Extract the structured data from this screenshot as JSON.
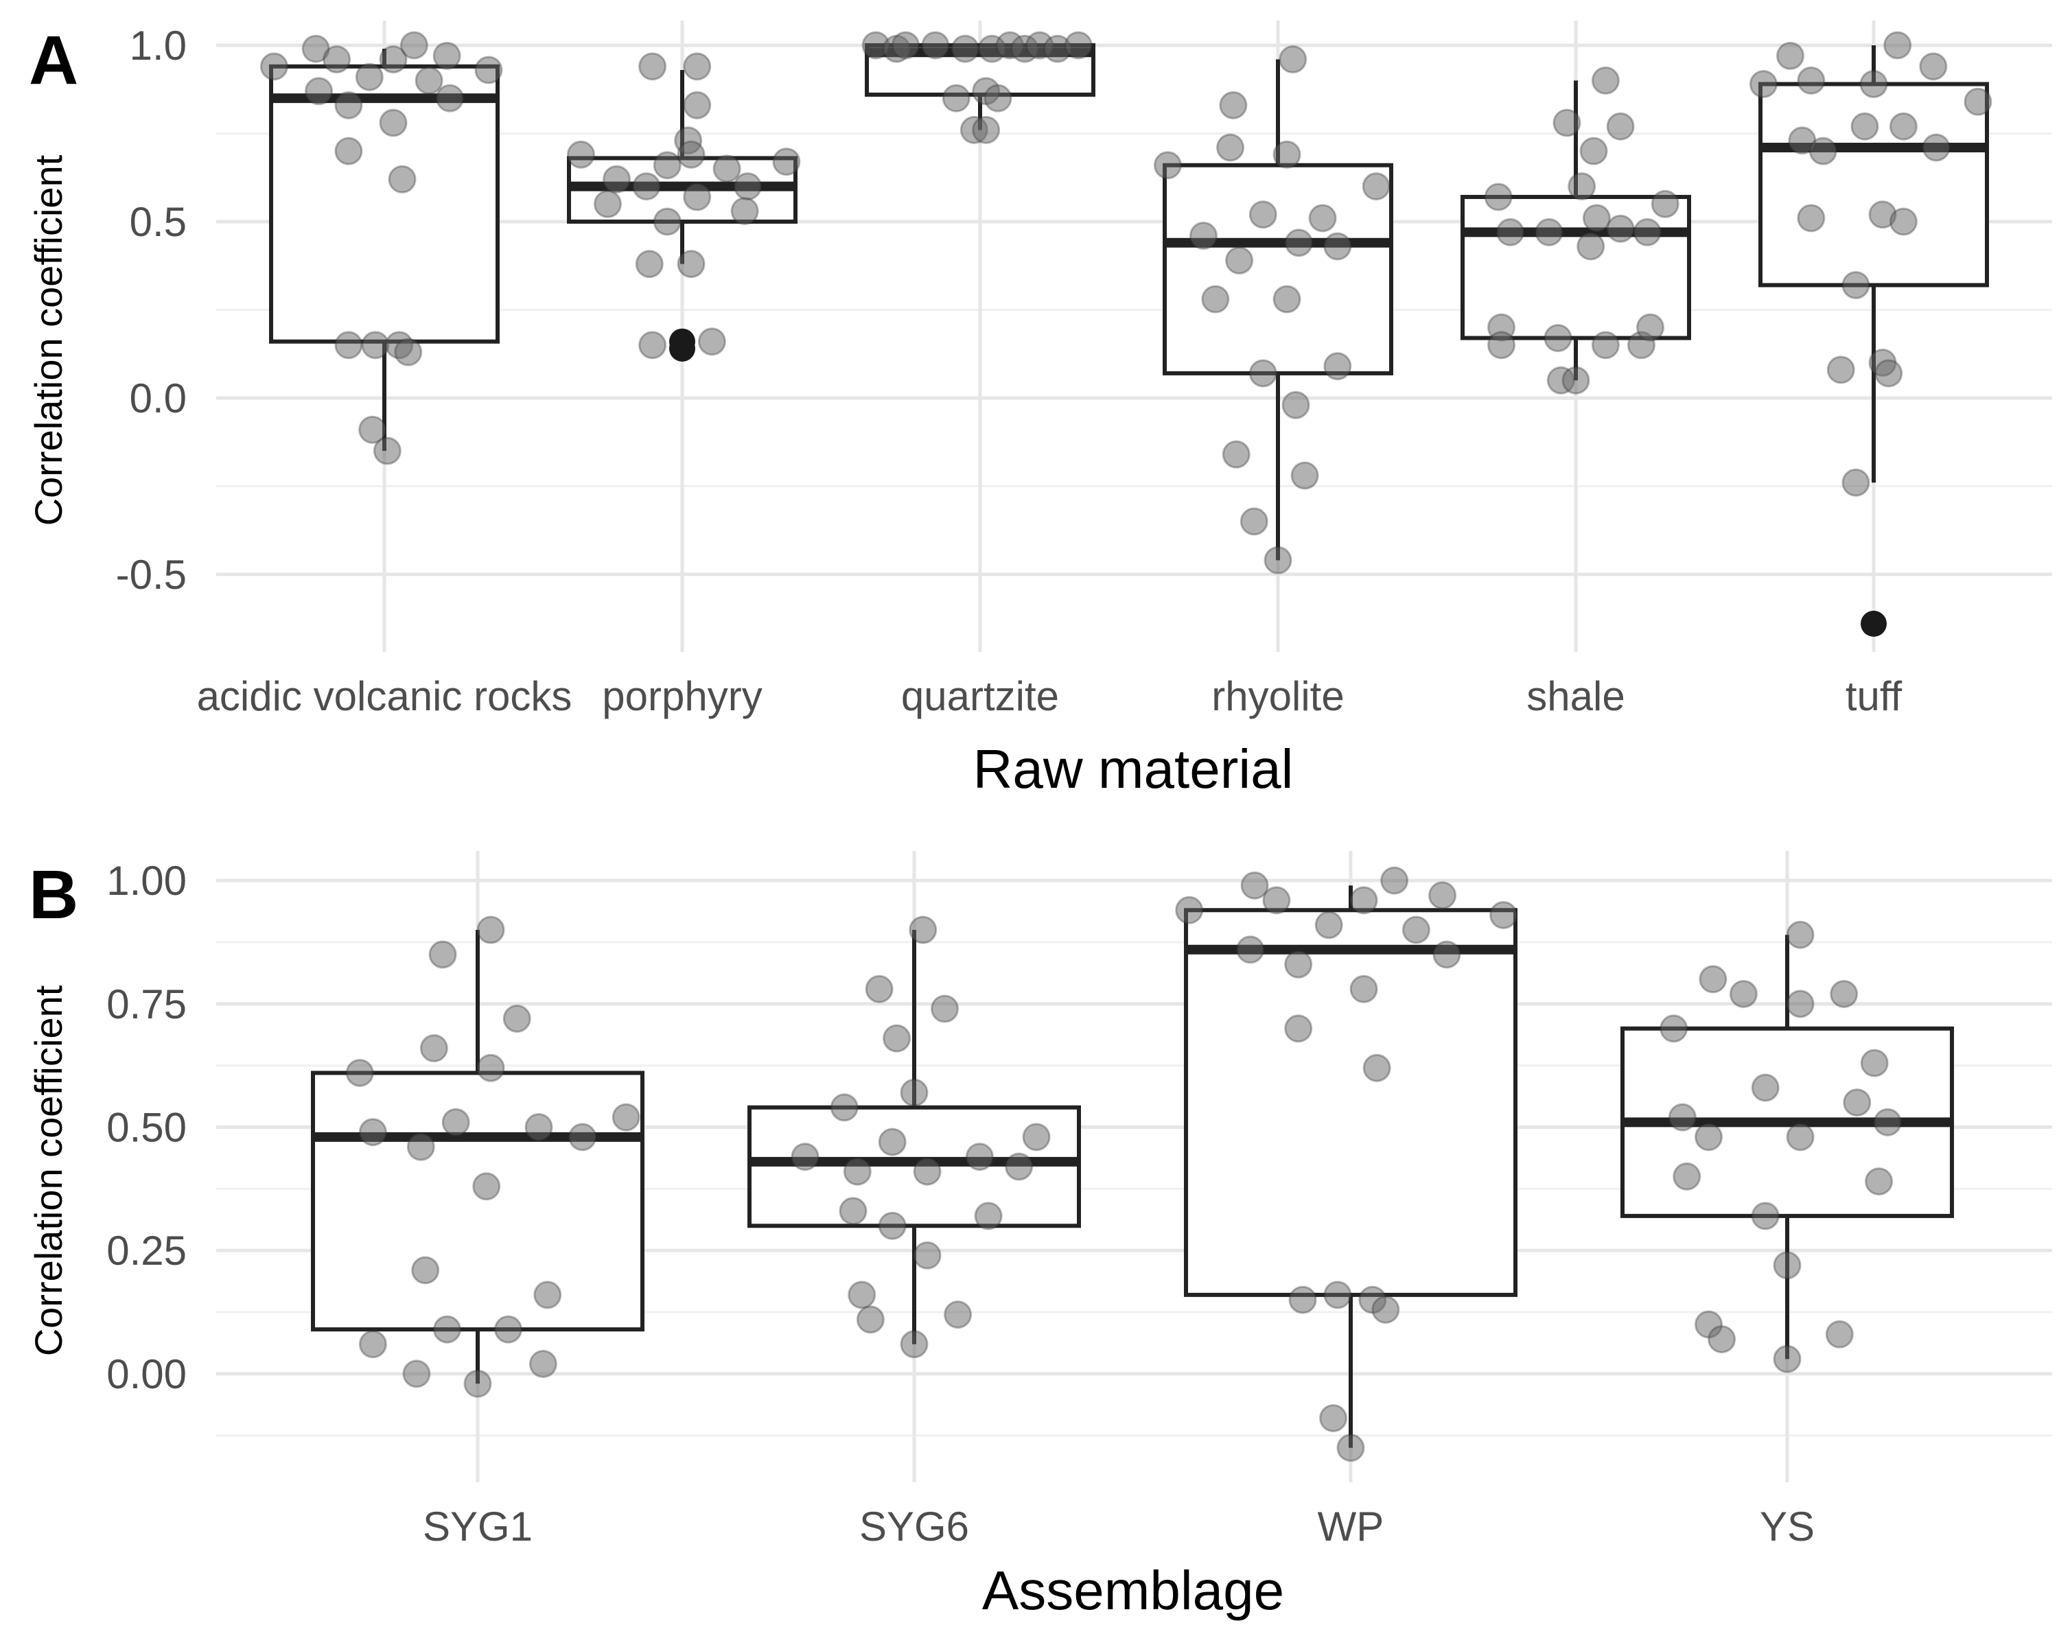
{
  "colors": {
    "grid_major": "#e6e6e6",
    "grid_minor": "#f0f0f0",
    "box_stroke": "#222222",
    "point_fill": "#666666",
    "outlier_fill": "#1a1a1a"
  },
  "chart_data": [
    {
      "panel": "A",
      "type": "box",
      "xlabel": "Raw material",
      "ylabel": "Correlation coefficient",
      "ylim": [
        -0.72,
        1.07
      ],
      "yticks": [
        -0.5,
        0.0,
        0.5,
        1.0
      ],
      "ytick_labels": [
        "-0.5",
        "0.0",
        "0.5",
        "1.0"
      ],
      "categories": [
        "acidic volcanic rocks",
        "porphyry",
        "quartzite",
        "rhyolite",
        "shale",
        "tuff"
      ],
      "boxes": [
        {
          "q1": 0.16,
          "median": 0.85,
          "q3": 0.94,
          "whisker_low": -0.15,
          "whisker_high": 0.99,
          "outliers": []
        },
        {
          "q1": 0.5,
          "median": 0.6,
          "q3": 0.68,
          "whisker_low": 0.38,
          "whisker_high": 0.93,
          "outliers": [
            0.14,
            0.16
          ]
        },
        {
          "q1": 0.86,
          "median": 0.98,
          "q3": 1.0,
          "whisker_low": 0.76,
          "whisker_high": 1.0,
          "outliers": []
        },
        {
          "q1": 0.07,
          "median": 0.44,
          "q3": 0.66,
          "whisker_low": -0.46,
          "whisker_high": 0.96,
          "outliers": []
        },
        {
          "q1": 0.17,
          "median": 0.47,
          "q3": 0.57,
          "whisker_low": 0.05,
          "whisker_high": 0.9,
          "outliers": []
        },
        {
          "q1": 0.32,
          "median": 0.71,
          "q3": 0.89,
          "whisker_low": -0.24,
          "whisker_high": 1.0,
          "outliers": [
            -0.64
          ]
        }
      ],
      "points": [
        [
          [
            -0.37,
            0.94
          ],
          [
            -0.23,
            0.99
          ],
          [
            -0.16,
            0.96
          ],
          [
            -0.22,
            0.87
          ],
          [
            -0.12,
            0.83
          ],
          [
            -0.05,
            0.91
          ],
          [
            0.03,
            0.96
          ],
          [
            0.1,
            1.0
          ],
          [
            0.15,
            0.9
          ],
          [
            0.21,
            0.97
          ],
          [
            0.22,
            0.85
          ],
          [
            0.35,
            0.93
          ],
          [
            -0.12,
            0.7
          ],
          [
            0.03,
            0.78
          ],
          [
            0.06,
            0.62
          ],
          [
            -0.12,
            0.15
          ],
          [
            -0.03,
            0.15
          ],
          [
            0.05,
            0.15
          ],
          [
            0.08,
            0.13
          ],
          [
            -0.04,
            -0.09
          ],
          [
            0.01,
            -0.15
          ]
        ],
        [
          [
            -0.34,
            0.69
          ],
          [
            -0.25,
            0.55
          ],
          [
            -0.22,
            0.62
          ],
          [
            -0.12,
            0.6
          ],
          [
            -0.05,
            0.66
          ],
          [
            0.02,
            0.73
          ],
          [
            0.03,
            0.69
          ],
          [
            0.05,
            0.57
          ],
          [
            0.15,
            0.65
          ],
          [
            0.21,
            0.53
          ],
          [
            0.22,
            0.6
          ],
          [
            0.35,
            0.67
          ],
          [
            -0.1,
            0.94
          ],
          [
            0.05,
            0.94
          ],
          [
            0.05,
            0.83
          ],
          [
            -0.05,
            0.5
          ],
          [
            -0.11,
            0.38
          ],
          [
            0.03,
            0.38
          ],
          [
            -0.1,
            0.15
          ],
          [
            0.1,
            0.16
          ]
        ],
        [
          [
            -0.35,
            1.0
          ],
          [
            -0.28,
            0.99
          ],
          [
            -0.25,
            1.0
          ],
          [
            -0.15,
            1.0
          ],
          [
            -0.05,
            0.99
          ],
          [
            0.04,
            0.99
          ],
          [
            0.1,
            1.0
          ],
          [
            0.15,
            0.99
          ],
          [
            0.2,
            1.0
          ],
          [
            0.26,
            0.99
          ],
          [
            0.33,
            1.0
          ],
          [
            -0.08,
            0.85
          ],
          [
            0.02,
            0.87
          ],
          [
            0.06,
            0.85
          ],
          [
            -0.02,
            0.76
          ],
          [
            0.02,
            0.76
          ]
        ],
        [
          [
            -0.37,
            0.66
          ],
          [
            -0.25,
            0.46
          ],
          [
            -0.15,
            0.83
          ],
          [
            -0.16,
            0.71
          ],
          [
            -0.13,
            0.39
          ],
          [
            -0.21,
            0.28
          ],
          [
            -0.05,
            0.52
          ],
          [
            0.03,
            0.69
          ],
          [
            0.03,
            0.28
          ],
          [
            0.05,
            0.96
          ],
          [
            0.15,
            0.51
          ],
          [
            0.2,
            0.43
          ],
          [
            0.2,
            0.09
          ],
          [
            0.33,
            0.6
          ],
          [
            0.07,
            0.44
          ],
          [
            -0.05,
            0.07
          ],
          [
            0.06,
            -0.02
          ],
          [
            0.09,
            -0.22
          ],
          [
            -0.14,
            -0.16
          ],
          [
            -0.08,
            -0.35
          ],
          [
            0.0,
            -0.46
          ]
        ],
        [
          [
            -0.26,
            0.57
          ],
          [
            -0.25,
            0.2
          ],
          [
            -0.25,
            0.15
          ],
          [
            -0.22,
            0.47
          ],
          [
            -0.09,
            0.47
          ],
          [
            -0.03,
            0.78
          ],
          [
            -0.06,
            0.17
          ],
          [
            0.06,
            0.7
          ],
          [
            0.07,
            0.51
          ],
          [
            0.02,
            0.6
          ],
          [
            0.05,
            0.43
          ],
          [
            0.1,
            0.9
          ],
          [
            0.15,
            0.77
          ],
          [
            0.1,
            0.15
          ],
          [
            0.22,
            0.15
          ],
          [
            0.15,
            0.48
          ],
          [
            0.24,
            0.47
          ],
          [
            0.3,
            0.55
          ],
          [
            0.25,
            0.2
          ],
          [
            -0.05,
            0.05
          ],
          [
            0.0,
            0.05
          ]
        ],
        [
          [
            -0.37,
            0.89
          ],
          [
            -0.28,
            0.97
          ],
          [
            -0.21,
            0.9
          ],
          [
            -0.24,
            0.73
          ],
          [
            -0.17,
            0.7
          ],
          [
            -0.21,
            0.51
          ],
          [
            -0.03,
            0.77
          ],
          [
            0.0,
            0.89
          ],
          [
            0.03,
            0.52
          ],
          [
            0.08,
            1.0
          ],
          [
            0.1,
            0.77
          ],
          [
            0.2,
            0.94
          ],
          [
            0.21,
            0.71
          ],
          [
            0.35,
            0.84
          ],
          [
            0.1,
            0.5
          ],
          [
            -0.06,
            0.32
          ],
          [
            -0.11,
            0.08
          ],
          [
            0.03,
            0.1
          ],
          [
            0.05,
            0.07
          ],
          [
            -0.06,
            -0.24
          ]
        ]
      ]
    },
    {
      "panel": "B",
      "type": "box",
      "xlabel": "Assemblage",
      "ylabel": "Correlation coefficient",
      "ylim": [
        -0.22,
        1.06
      ],
      "yticks": [
        0.0,
        0.25,
        0.5,
        0.75,
        1.0
      ],
      "ytick_labels": [
        "0.00",
        "0.25",
        "0.50",
        "0.75",
        "1.00"
      ],
      "categories": [
        "SYG1",
        "SYG6",
        "WP",
        "YS"
      ],
      "boxes": [
        {
          "q1": 0.09,
          "median": 0.48,
          "q3": 0.61,
          "whisker_low": -0.02,
          "whisker_high": 0.9,
          "outliers": []
        },
        {
          "q1": 0.3,
          "median": 0.43,
          "q3": 0.54,
          "whisker_low": 0.06,
          "whisker_high": 0.9,
          "outliers": []
        },
        {
          "q1": 0.16,
          "median": 0.86,
          "q3": 0.94,
          "whisker_low": -0.15,
          "whisker_high": 0.99,
          "outliers": []
        },
        {
          "q1": 0.32,
          "median": 0.51,
          "q3": 0.7,
          "whisker_low": 0.03,
          "whisker_high": 0.89,
          "outliers": []
        }
      ],
      "points": [
        [
          [
            -0.27,
            0.61
          ],
          [
            -0.24,
            0.49
          ],
          [
            -0.13,
            0.46
          ],
          [
            -0.1,
            0.66
          ],
          [
            -0.08,
            0.85
          ],
          [
            -0.05,
            0.51
          ],
          [
            0.03,
            0.62
          ],
          [
            0.03,
            0.9
          ],
          [
            0.09,
            0.72
          ],
          [
            0.14,
            0.5
          ],
          [
            0.24,
            0.48
          ],
          [
            0.34,
            0.52
          ],
          [
            0.02,
            0.38
          ],
          [
            -0.12,
            0.21
          ],
          [
            -0.07,
            0.09
          ],
          [
            0.07,
            0.09
          ],
          [
            0.16,
            0.16
          ],
          [
            -0.24,
            0.06
          ],
          [
            -0.14,
            0.0
          ],
          [
            0.0,
            -0.02
          ],
          [
            0.15,
            0.02
          ]
        ],
        [
          [
            -0.25,
            0.44
          ],
          [
            -0.16,
            0.54
          ],
          [
            -0.14,
            0.33
          ],
          [
            -0.13,
            0.41
          ],
          [
            -0.05,
            0.47
          ],
          [
            -0.04,
            0.68
          ],
          [
            -0.08,
            0.78
          ],
          [
            0.0,
            0.57
          ],
          [
            0.03,
            0.41
          ],
          [
            0.02,
            0.9
          ],
          [
            0.07,
            0.74
          ],
          [
            0.15,
            0.44
          ],
          [
            0.24,
            0.42
          ],
          [
            0.28,
            0.48
          ],
          [
            0.17,
            0.32
          ],
          [
            -0.05,
            0.3
          ],
          [
            0.03,
            0.24
          ],
          [
            -0.12,
            0.16
          ],
          [
            -0.1,
            0.11
          ],
          [
            0.1,
            0.12
          ],
          [
            0.0,
            0.06
          ]
        ],
        [
          [
            -0.37,
            0.94
          ],
          [
            -0.22,
            0.99
          ],
          [
            -0.17,
            0.96
          ],
          [
            -0.23,
            0.86
          ],
          [
            -0.12,
            0.83
          ],
          [
            -0.05,
            0.91
          ],
          [
            0.03,
            0.96
          ],
          [
            0.1,
            1.0
          ],
          [
            0.15,
            0.9
          ],
          [
            0.21,
            0.97
          ],
          [
            0.22,
            0.85
          ],
          [
            0.35,
            0.93
          ],
          [
            -0.12,
            0.7
          ],
          [
            0.03,
            0.78
          ],
          [
            0.06,
            0.62
          ],
          [
            -0.11,
            0.15
          ],
          [
            -0.03,
            0.16
          ],
          [
            0.05,
            0.15
          ],
          [
            0.08,
            0.13
          ],
          [
            -0.04,
            -0.09
          ],
          [
            0.0,
            -0.15
          ]
        ],
        [
          [
            -0.26,
            0.7
          ],
          [
            -0.24,
            0.52
          ],
          [
            -0.23,
            0.4
          ],
          [
            -0.17,
            0.8
          ],
          [
            -0.18,
            0.48
          ],
          [
            -0.1,
            0.77
          ],
          [
            -0.05,
            0.58
          ],
          [
            0.03,
            0.75
          ],
          [
            0.03,
            0.48
          ],
          [
            0.03,
            0.89
          ],
          [
            0.13,
            0.77
          ],
          [
            0.16,
            0.55
          ],
          [
            0.2,
            0.63
          ],
          [
            0.23,
            0.51
          ],
          [
            0.21,
            0.39
          ],
          [
            -0.05,
            0.32
          ],
          [
            0.0,
            0.22
          ],
          [
            -0.18,
            0.1
          ],
          [
            -0.15,
            0.07
          ],
          [
            0.0,
            0.03
          ],
          [
            0.12,
            0.08
          ]
        ]
      ]
    }
  ]
}
